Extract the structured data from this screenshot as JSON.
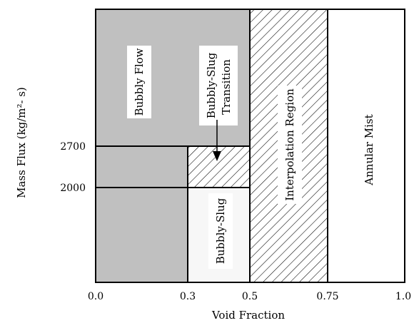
{
  "diagram": {
    "y_axis_label": "Mass Flux (kg/m²- s)",
    "x_axis_label": "Void Fraction",
    "x_ticks": [
      "0.0",
      "0.3",
      "0.5",
      "0.75",
      "1.0"
    ],
    "y_ticks": [
      "2700",
      "2000"
    ],
    "regions": {
      "bubbly_flow": "Bubbly Flow",
      "bubbly_slug_transition_1": "Bubbly-Slug",
      "bubbly_slug_transition_2": "Transition",
      "bubbly_slug": "Bubbly-Slug",
      "interpolation_region": "Interpolation Region",
      "annular_mist": "Annular Mist"
    },
    "colors": {
      "bubbly_fill": "#c0c0c0",
      "bubbly_slug_fill": "#f7f7f7",
      "annular_fill": "#ffffff",
      "hatch": "#000000"
    },
    "hatched_regions": [
      "bubbly-slug-transition",
      "interpolation-region"
    ]
  }
}
